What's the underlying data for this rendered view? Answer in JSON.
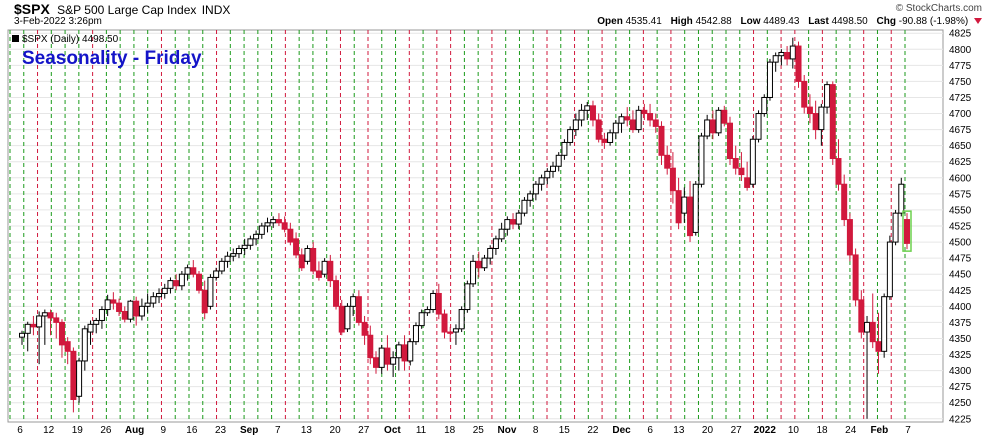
{
  "header": {
    "symbol": "$SPX",
    "description": "S&P 500 Large Cap Index",
    "exchange": "INDX",
    "date": "3-Feb-2022 3:26pm",
    "copyright": "© StockCharts.com",
    "quote": {
      "open_label": "Open",
      "open": "4535.41",
      "high_label": "High",
      "high": "4542.88",
      "low_label": "Low",
      "low": "4489.43",
      "last_label": "Last",
      "last": "4498.50",
      "chg_label": "Chg",
      "chg": "-90.88 (-1.98%)"
    }
  },
  "legend_text": "$SPX (Daily) 4498.50",
  "colors": {
    "up": "#ffffff",
    "down": "#d1193d",
    "outline": "#000000",
    "green_line": "#1b9a1b",
    "red_line": "#d1193d",
    "grid": "#e6e6e6",
    "title": "#1414c8"
  },
  "chart_data": {
    "type": "candlestick",
    "title": "Seasonality - Friday",
    "ylim": [
      4220,
      4830
    ],
    "yticks": [
      4225,
      4250,
      4275,
      4300,
      4325,
      4350,
      4375,
      4400,
      4425,
      4450,
      4475,
      4500,
      4525,
      4550,
      4575,
      4600,
      4625,
      4650,
      4675,
      4700,
      4725,
      4750,
      4775,
      4800,
      4825
    ],
    "xtick_labels": [
      "6",
      "12",
      "19",
      "26",
      "Aug",
      "9",
      "16",
      "23",
      "Sep",
      "7",
      "13",
      "20",
      "27",
      "Oct",
      "11",
      "18",
      "25",
      "Nov",
      "8",
      "15",
      "22",
      "Dec",
      "6",
      "13",
      "20",
      "27",
      "2022",
      "10",
      "18",
      "24",
      "Feb",
      "7"
    ],
    "bold_labels": [
      "Aug",
      "Sep",
      "Oct",
      "Nov",
      "Dec",
      "2022",
      "Feb"
    ],
    "seasonality": [
      "g",
      "g",
      "r",
      "g",
      "g",
      "g",
      "r",
      "g",
      "g",
      "g",
      "g",
      "r",
      "g",
      "g",
      "g",
      "r",
      "g",
      "g",
      "g",
      "g",
      "r",
      "g",
      "g",
      "g",
      "r",
      "g",
      "r",
      "g",
      "g",
      "r",
      "g",
      "r",
      "r",
      "g",
      "g",
      "r",
      "g",
      "g",
      "g",
      "r",
      "g",
      "r",
      "g",
      "r",
      "g",
      "g",
      "r",
      "g",
      "r",
      "g",
      "g",
      "g",
      "g",
      "g",
      "r",
      "g",
      "r",
      "r",
      "g",
      "r",
      "g",
      "g",
      "r",
      "g",
      "r",
      "g"
    ],
    "candles": [
      [
        4352,
        4362,
        4340,
        4358
      ],
      [
        4358,
        4376,
        4330,
        4372
      ],
      [
        4372,
        4385,
        4355,
        4368
      ],
      [
        4368,
        4392,
        4310,
        4385
      ],
      [
        4385,
        4395,
        4340,
        4390
      ],
      [
        4390,
        4395,
        4355,
        4382
      ],
      [
        4382,
        4390,
        4350,
        4375
      ],
      [
        4375,
        4380,
        4320,
        4340
      ],
      [
        4345,
        4352,
        4310,
        4330
      ],
      [
        4330,
        4336,
        4235,
        4255
      ],
      [
        4260,
        4320,
        4250,
        4315
      ],
      [
        4315,
        4370,
        4300,
        4365
      ],
      [
        4360,
        4378,
        4340,
        4372
      ],
      [
        4372,
        4382,
        4358,
        4378
      ],
      [
        4378,
        4400,
        4365,
        4395
      ],
      [
        4395,
        4418,
        4385,
        4410
      ],
      [
        4410,
        4422,
        4395,
        4405
      ],
      [
        4405,
        4412,
        4385,
        4392
      ],
      [
        4392,
        4400,
        4375,
        4380
      ],
      [
        4380,
        4410,
        4375,
        4408
      ],
      [
        4408,
        4415,
        4370,
        4385
      ],
      [
        4385,
        4412,
        4378,
        4400
      ],
      [
        4400,
        4420,
        4390,
        4405
      ],
      [
        4405,
        4422,
        4398,
        4415
      ],
      [
        4415,
        4428,
        4405,
        4420
      ],
      [
        4420,
        4435,
        4412,
        4428
      ],
      [
        4428,
        4445,
        4420,
        4440
      ],
      [
        4440,
        4450,
        4425,
        4432
      ],
      [
        4432,
        4455,
        4425,
        4450
      ],
      [
        4450,
        4465,
        4440,
        4460
      ],
      [
        4460,
        4472,
        4445,
        4450
      ],
      [
        4450,
        4455,
        4420,
        4425
      ],
      [
        4425,
        4440,
        4380,
        4390
      ],
      [
        4400,
        4450,
        4395,
        4445
      ],
      [
        4445,
        4460,
        4440,
        4455
      ],
      [
        4455,
        4475,
        4450,
        4470
      ],
      [
        4470,
        4485,
        4460,
        4478
      ],
      [
        4478,
        4490,
        4470,
        4482
      ],
      [
        4482,
        4495,
        4475,
        4490
      ],
      [
        4490,
        4505,
        4480,
        4495
      ],
      [
        4495,
        4510,
        4488,
        4505
      ],
      [
        4505,
        4518,
        4495,
        4512
      ],
      [
        4512,
        4530,
        4505,
        4525
      ],
      [
        4525,
        4538,
        4515,
        4530
      ],
      [
        4530,
        4540,
        4522,
        4535
      ],
      [
        4535,
        4545,
        4525,
        4530
      ],
      [
        4530,
        4540,
        4515,
        4520
      ],
      [
        4520,
        4530,
        4495,
        4500
      ],
      [
        4505,
        4515,
        4475,
        4480
      ],
      [
        4480,
        4490,
        4455,
        4460
      ],
      [
        4470,
        4495,
        4465,
        4490
      ],
      [
        4490,
        4500,
        4450,
        4455
      ],
      [
        4455,
        4470,
        4440,
        4445
      ],
      [
        4450,
        4475,
        4445,
        4470
      ],
      [
        4470,
        4480,
        4430,
        4440
      ],
      [
        4440,
        4448,
        4395,
        4400
      ],
      [
        4400,
        4410,
        4355,
        4360
      ],
      [
        4365,
        4405,
        4360,
        4400
      ],
      [
        4400,
        4420,
        4385,
        4415
      ],
      [
        4415,
        4425,
        4370,
        4375
      ],
      [
        4375,
        4385,
        4340,
        4355
      ],
      [
        4355,
        4370,
        4310,
        4320
      ],
      [
        4320,
        4330,
        4295,
        4305
      ],
      [
        4305,
        4340,
        4295,
        4335
      ],
      [
        4335,
        4355,
        4300,
        4310
      ],
      [
        4310,
        4330,
        4290,
        4320
      ],
      [
        4320,
        4345,
        4300,
        4340
      ],
      [
        4340,
        4355,
        4300,
        4315
      ],
      [
        4315,
        4350,
        4308,
        4345
      ],
      [
        4345,
        4375,
        4340,
        4370
      ],
      [
        4370,
        4395,
        4365,
        4390
      ],
      [
        4390,
        4400,
        4385,
        4395
      ],
      [
        4395,
        4425,
        4390,
        4420
      ],
      [
        4420,
        4435,
        4380,
        4388
      ],
      [
        4388,
        4395,
        4350,
        4360
      ],
      [
        4360,
        4368,
        4345,
        4358
      ],
      [
        4360,
        4372,
        4340,
        4365
      ],
      [
        4365,
        4400,
        4360,
        4395
      ],
      [
        4395,
        4440,
        4390,
        4435
      ],
      [
        4435,
        4480,
        4430,
        4470
      ],
      [
        4470,
        4485,
        4445,
        4460
      ],
      [
        4460,
        4480,
        4455,
        4475
      ],
      [
        4475,
        4495,
        4465,
        4490
      ],
      [
        4490,
        4510,
        4480,
        4505
      ],
      [
        4505,
        4530,
        4500,
        4520
      ],
      [
        4520,
        4540,
        4510,
        4535
      ],
      [
        4535,
        4545,
        4520,
        4528
      ],
      [
        4528,
        4550,
        4520,
        4545
      ],
      [
        4545,
        4570,
        4540,
        4565
      ],
      [
        4565,
        4580,
        4555,
        4575
      ],
      [
        4575,
        4595,
        4565,
        4590
      ],
      [
        4590,
        4605,
        4580,
        4600
      ],
      [
        4600,
        4615,
        4590,
        4610
      ],
      [
        4610,
        4625,
        4600,
        4618
      ],
      [
        4618,
        4640,
        4610,
        4635
      ],
      [
        4635,
        4660,
        4628,
        4655
      ],
      [
        4655,
        4680,
        4650,
        4675
      ],
      [
        4675,
        4700,
        4665,
        4690
      ],
      [
        4690,
        4715,
        4680,
        4705
      ],
      [
        4705,
        4718,
        4690,
        4712
      ],
      [
        4712,
        4720,
        4680,
        4690
      ],
      [
        4690,
        4700,
        4655,
        4660
      ],
      [
        4660,
        4670,
        4645,
        4655
      ],
      [
        4655,
        4675,
        4650,
        4670
      ],
      [
        4670,
        4690,
        4660,
        4685
      ],
      [
        4685,
        4700,
        4670,
        4695
      ],
      [
        4695,
        4710,
        4680,
        4690
      ],
      [
        4690,
        4705,
        4670,
        4675
      ],
      [
        4675,
        4712,
        4670,
        4705
      ],
      [
        4705,
        4715,
        4690,
        4700
      ],
      [
        4700,
        4715,
        4680,
        4690
      ],
      [
        4690,
        4700,
        4670,
        4680
      ],
      [
        4680,
        4688,
        4620,
        4635
      ],
      [
        4635,
        4650,
        4605,
        4615
      ],
      [
        4615,
        4640,
        4560,
        4580
      ],
      [
        4580,
        4600,
        4520,
        4530
      ],
      [
        4545,
        4585,
        4530,
        4570
      ],
      [
        4570,
        4595,
        4500,
        4510
      ],
      [
        4515,
        4595,
        4510,
        4590
      ],
      [
        4590,
        4670,
        4585,
        4665
      ],
      [
        4665,
        4698,
        4660,
        4690
      ],
      [
        4690,
        4705,
        4660,
        4670
      ],
      [
        4670,
        4710,
        4665,
        4705
      ],
      [
        4705,
        4712,
        4680,
        4685
      ],
      [
        4685,
        4695,
        4620,
        4630
      ],
      [
        4630,
        4650,
        4605,
        4615
      ],
      [
        4615,
        4640,
        4595,
        4605
      ],
      [
        4600,
        4625,
        4580,
        4585
      ],
      [
        4590,
        4665,
        4585,
        4660
      ],
      [
        4660,
        4705,
        4655,
        4700
      ],
      [
        4700,
        4730,
        4695,
        4725
      ],
      [
        4725,
        4785,
        4720,
        4780
      ],
      [
        4780,
        4795,
        4765,
        4790
      ],
      [
        4790,
        4800,
        4775,
        4795
      ],
      [
        4795,
        4805,
        4775,
        4785
      ],
      [
        4785,
        4818,
        4770,
        4805
      ],
      [
        4805,
        4812,
        4740,
        4750
      ],
      [
        4750,
        4760,
        4700,
        4710
      ],
      [
        4710,
        4730,
        4685,
        4700
      ],
      [
        4700,
        4720,
        4660,
        4675
      ],
      [
        4675,
        4715,
        4650,
        4710
      ],
      [
        4710,
        4750,
        4700,
        4745
      ],
      [
        4745,
        4750,
        4620,
        4630
      ],
      [
        4630,
        4660,
        4580,
        4590
      ],
      [
        4590,
        4605,
        4525,
        4535
      ],
      [
        4535,
        4545,
        4470,
        4480
      ],
      [
        4480,
        4490,
        4400,
        4410
      ],
      [
        4410,
        4425,
        4350,
        4360
      ],
      [
        4360,
        4385,
        4225,
        4375
      ],
      [
        4375,
        4420,
        4335,
        4345
      ],
      [
        4345,
        4390,
        4295,
        4330
      ],
      [
        4330,
        4420,
        4320,
        4415
      ],
      [
        4415,
        4510,
        4410,
        4500
      ],
      [
        4500,
        4550,
        4495,
        4545
      ],
      [
        4545,
        4600,
        4540,
        4590
      ],
      [
        4535,
        4545,
        4489,
        4498
      ]
    ]
  }
}
